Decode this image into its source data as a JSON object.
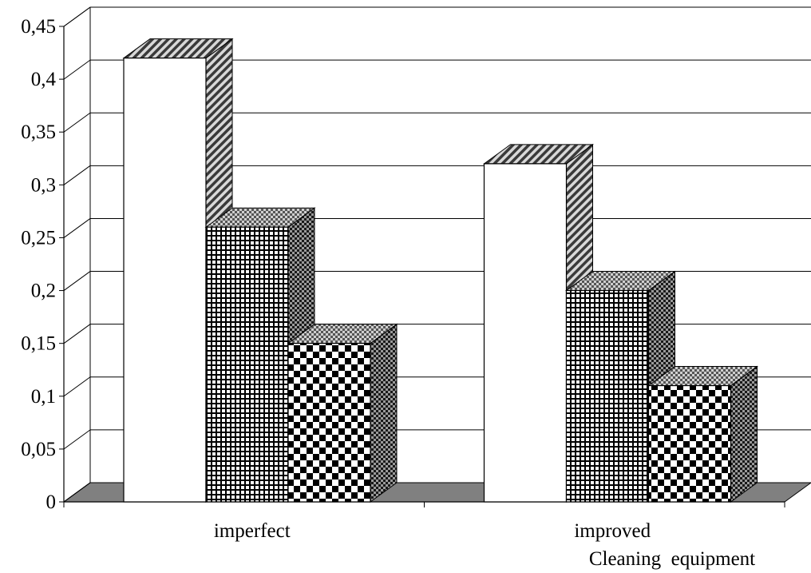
{
  "chart_data": {
    "type": "bar",
    "subtype": "3d-clustered-column",
    "categories": [
      "imperfect",
      "improved"
    ],
    "xlabel": "Cleaning  equipment",
    "ylabel": "",
    "title": "",
    "ylim": [
      0,
      0.45
    ],
    "yticks": [
      "0",
      "0,05",
      "0,1",
      "0,15",
      "0,2",
      "0,25",
      "0,3",
      "0,35",
      "0,4",
      "0,45"
    ],
    "grid": true,
    "legend": "none",
    "series": [
      {
        "values": [
          0.42,
          0.32
        ],
        "fill": "plain-white",
        "side_pattern": "diagonal-stripes"
      },
      {
        "values": [
          0.26,
          0.2
        ],
        "fill": "fine-grid",
        "side_pattern": "fine-checker"
      },
      {
        "values": [
          0.15,
          0.11
        ],
        "fill": "checkerboard",
        "side_pattern": "fine-checker"
      }
    ],
    "colors": {
      "floor": "#808080",
      "grid": "#000000",
      "background": "#ffffff"
    }
  }
}
